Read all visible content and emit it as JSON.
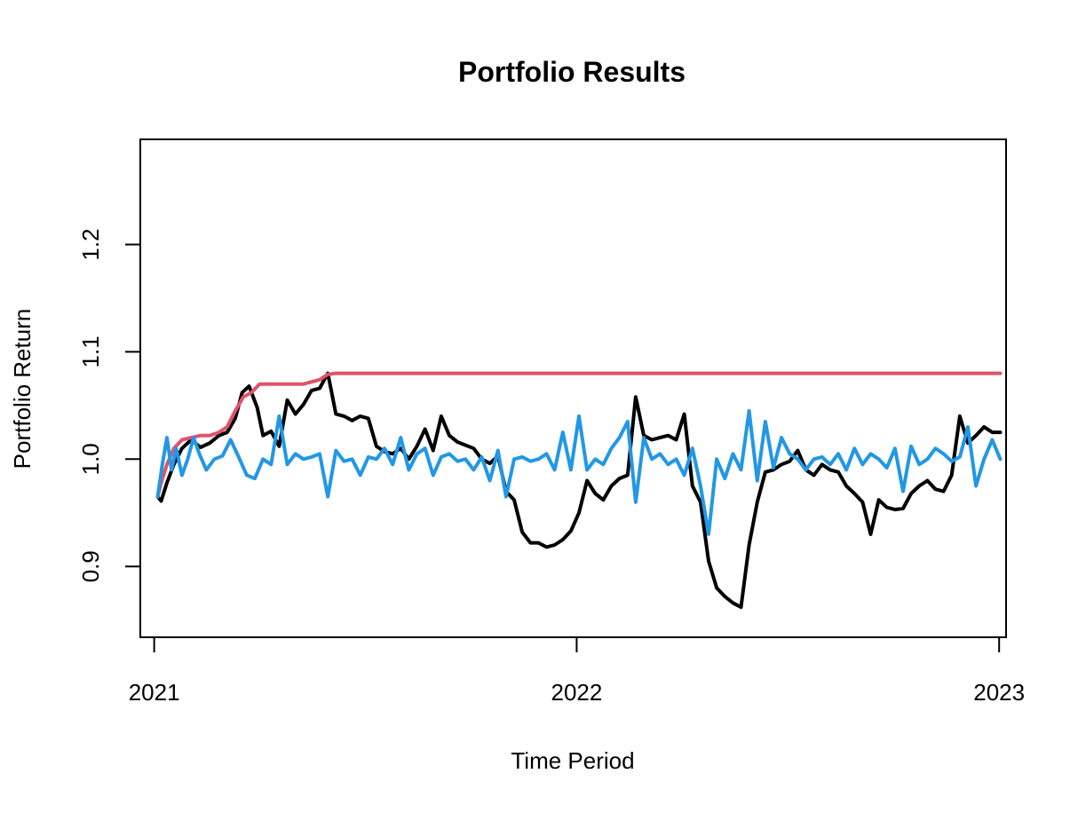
{
  "chart_data": {
    "type": "line",
    "title": "Portfolio Results",
    "xlabel": "Time Period",
    "ylabel": "Portfolio Return",
    "xlim": [
      "2020-12-20",
      "2023-01-07"
    ],
    "ylim": [
      0.834,
      1.298
    ],
    "x_ticks": [
      {
        "date": "2021-01-01",
        "label": "2021"
      },
      {
        "date": "2022-01-01",
        "label": "2022"
      },
      {
        "date": "2023-01-01",
        "label": "2023"
      }
    ],
    "y_ticks": [
      {
        "value": 0.9,
        "label": "0.9"
      },
      {
        "value": 1.0,
        "label": "1.0"
      },
      {
        "value": 1.1,
        "label": "1.1"
      },
      {
        "value": 1.2,
        "label": "1.2"
      }
    ],
    "grid": false,
    "legend": "none",
    "series": [
      {
        "color": "#000000",
        "x": [
          "2021-01-04",
          "2021-01-07",
          "2021-01-12",
          "2021-01-18",
          "2021-01-25",
          "2021-02-02",
          "2021-02-10",
          "2021-02-18",
          "2021-02-26",
          "2021-03-05",
          "2021-03-12",
          "2021-03-18",
          "2021-03-24",
          "2021-03-31",
          "2021-04-05",
          "2021-04-12",
          "2021-04-19",
          "2021-04-26",
          "2021-05-03",
          "2021-05-10",
          "2021-05-17",
          "2021-05-24",
          "2021-05-31",
          "2021-06-07",
          "2021-06-14",
          "2021-06-21",
          "2021-06-28",
          "2021-07-05",
          "2021-07-12",
          "2021-07-19",
          "2021-07-26",
          "2021-08-02",
          "2021-08-09",
          "2021-08-16",
          "2021-08-23",
          "2021-08-30",
          "2021-09-06",
          "2021-09-13",
          "2021-09-20",
          "2021-09-27",
          "2021-10-04",
          "2021-10-11",
          "2021-10-18",
          "2021-10-25",
          "2021-11-01",
          "2021-11-08",
          "2021-11-15",
          "2021-11-22",
          "2021-11-29",
          "2021-12-06",
          "2021-12-13",
          "2021-12-20",
          "2021-12-27",
          "2022-01-03",
          "2022-01-10",
          "2022-01-17",
          "2022-01-24",
          "2022-01-31",
          "2022-02-07",
          "2022-02-14",
          "2022-02-21",
          "2022-02-28",
          "2022-03-07",
          "2022-03-14",
          "2022-03-21",
          "2022-03-28",
          "2022-04-04",
          "2022-04-11",
          "2022-04-18",
          "2022-04-25",
          "2022-05-02",
          "2022-05-09",
          "2022-05-16",
          "2022-05-23",
          "2022-05-30",
          "2022-06-06",
          "2022-06-13",
          "2022-06-20",
          "2022-06-27",
          "2022-07-04",
          "2022-07-11",
          "2022-07-18",
          "2022-07-25",
          "2022-08-01",
          "2022-08-08",
          "2022-08-15",
          "2022-08-22",
          "2022-08-29",
          "2022-09-05",
          "2022-09-12",
          "2022-09-19",
          "2022-09-26",
          "2022-10-03",
          "2022-10-10",
          "2022-10-17",
          "2022-10-24",
          "2022-10-31",
          "2022-11-07",
          "2022-11-14",
          "2022-11-21",
          "2022-11-28",
          "2022-12-05",
          "2022-12-12",
          "2022-12-19",
          "2022-12-26",
          "2023-01-02"
        ],
        "values": [
          0.965,
          0.961,
          0.978,
          0.995,
          1.01,
          1.018,
          1.011,
          1.015,
          1.022,
          1.025,
          1.038,
          1.062,
          1.068,
          1.048,
          1.022,
          1.026,
          1.012,
          1.055,
          1.042,
          1.051,
          1.064,
          1.066,
          1.08,
          1.042,
          1.04,
          1.036,
          1.04,
          1.038,
          1.012,
          1.007,
          1.005,
          1.01,
          1.0,
          1.012,
          1.028,
          1.008,
          1.04,
          1.022,
          1.016,
          1.013,
          1.01,
          1.0,
          0.996,
          1.003,
          0.97,
          0.962,
          0.932,
          0.922,
          0.922,
          0.918,
          0.92,
          0.925,
          0.933,
          0.95,
          0.98,
          0.968,
          0.962,
          0.975,
          0.982,
          0.985,
          1.058,
          1.022,
          1.018,
          1.02,
          1.022,
          1.018,
          1.042,
          0.975,
          0.96,
          0.905,
          0.88,
          0.872,
          0.866,
          0.862,
          0.92,
          0.96,
          0.988,
          0.99,
          0.995,
          0.998,
          1.008,
          0.99,
          0.985,
          0.995,
          0.99,
          0.988,
          0.975,
          0.968,
          0.96,
          0.93,
          0.962,
          0.955,
          0.953,
          0.954,
          0.968,
          0.975,
          0.98,
          0.972,
          0.97,
          0.985,
          1.04,
          1.015,
          1.022,
          1.03,
          1.025,
          1.025
        ]
      },
      {
        "color": "#DF536B",
        "x": [
          "2021-01-04",
          "2021-01-07",
          "2021-01-12",
          "2021-01-18",
          "2021-01-25",
          "2021-02-02",
          "2021-02-10",
          "2021-02-18",
          "2021-02-26",
          "2021-03-05",
          "2021-03-12",
          "2021-03-19",
          "2021-03-26",
          "2021-04-02",
          "2021-04-20",
          "2021-05-10",
          "2021-05-24",
          "2021-05-31",
          "2021-06-07",
          "2021-09-01",
          "2022-01-01",
          "2022-06-01",
          "2022-10-01",
          "2023-01-02"
        ],
        "values": [
          0.965,
          0.978,
          0.995,
          1.01,
          1.018,
          1.02,
          1.022,
          1.022,
          1.025,
          1.03,
          1.045,
          1.058,
          1.062,
          1.07,
          1.07,
          1.07,
          1.074,
          1.079,
          1.08,
          1.08,
          1.08,
          1.08,
          1.08,
          1.08
        ]
      },
      {
        "color": "#2297E6",
        "x": [
          "2021-01-04",
          "2021-01-08",
          "2021-01-12",
          "2021-01-16",
          "2021-01-20",
          "2021-01-25",
          "2021-01-30",
          "2021-02-04",
          "2021-02-09",
          "2021-02-15",
          "2021-02-22",
          "2021-03-01",
          "2021-03-08",
          "2021-03-15",
          "2021-03-22",
          "2021-03-29",
          "2021-04-05",
          "2021-04-12",
          "2021-04-19",
          "2021-04-26",
          "2021-05-03",
          "2021-05-10",
          "2021-05-17",
          "2021-05-24",
          "2021-05-31",
          "2021-06-07",
          "2021-06-14",
          "2021-06-21",
          "2021-06-28",
          "2021-07-05",
          "2021-07-12",
          "2021-07-19",
          "2021-07-26",
          "2021-08-02",
          "2021-08-09",
          "2021-08-16",
          "2021-08-23",
          "2021-08-30",
          "2021-09-06",
          "2021-09-13",
          "2021-09-20",
          "2021-09-27",
          "2021-10-04",
          "2021-10-11",
          "2021-10-18",
          "2021-10-25",
          "2021-11-01",
          "2021-11-08",
          "2021-11-15",
          "2021-11-22",
          "2021-11-29",
          "2021-12-06",
          "2021-12-13",
          "2021-12-20",
          "2021-12-27",
          "2022-01-03",
          "2022-01-10",
          "2022-01-17",
          "2022-01-24",
          "2022-01-31",
          "2022-02-07",
          "2022-02-14",
          "2022-02-21",
          "2022-02-28",
          "2022-03-07",
          "2022-03-14",
          "2022-03-21",
          "2022-03-28",
          "2022-04-04",
          "2022-04-11",
          "2022-04-18",
          "2022-04-25",
          "2022-05-02",
          "2022-05-09",
          "2022-05-16",
          "2022-05-23",
          "2022-05-30",
          "2022-06-06",
          "2022-06-13",
          "2022-06-20",
          "2022-06-27",
          "2022-07-04",
          "2022-07-11",
          "2022-07-18",
          "2022-07-25",
          "2022-08-01",
          "2022-08-08",
          "2022-08-15",
          "2022-08-22",
          "2022-08-29",
          "2022-09-05",
          "2022-09-12",
          "2022-09-19",
          "2022-09-26",
          "2022-10-03",
          "2022-10-10",
          "2022-10-17",
          "2022-10-24",
          "2022-10-31",
          "2022-11-07",
          "2022-11-14",
          "2022-11-21",
          "2022-11-28",
          "2022-12-05",
          "2022-12-12",
          "2022-12-19",
          "2022-12-26",
          "2023-01-02"
        ],
        "values": [
          0.965,
          0.995,
          1.02,
          0.99,
          1.01,
          0.985,
          1.0,
          1.02,
          1.005,
          0.99,
          1.0,
          1.003,
          1.018,
          1.002,
          0.985,
          0.982,
          1.0,
          0.995,
          1.04,
          0.995,
          1.005,
          1.0,
          1.002,
          1.005,
          0.965,
          1.008,
          0.998,
          1.0,
          0.985,
          1.002,
          1.0,
          1.01,
          0.995,
          1.02,
          0.99,
          1.005,
          1.01,
          0.985,
          1.002,
          1.005,
          0.998,
          1.0,
          0.99,
          1.002,
          0.98,
          1.008,
          0.965,
          1.0,
          1.002,
          0.998,
          1.0,
          1.005,
          0.99,
          1.025,
          0.99,
          1.04,
          0.99,
          1.0,
          0.995,
          1.01,
          1.02,
          1.035,
          0.96,
          1.02,
          1.0,
          1.005,
          0.995,
          1.0,
          0.985,
          1.01,
          0.975,
          0.93,
          1.0,
          0.982,
          1.005,
          0.99,
          1.045,
          0.98,
          1.035,
          0.992,
          1.02,
          1.005,
          1.0,
          0.99,
          1.0,
          1.002,
          0.995,
          1.005,
          0.99,
          1.01,
          0.995,
          1.005,
          1.0,
          0.992,
          1.01,
          0.97,
          1.012,
          0.995,
          1.0,
          1.01,
          1.005,
          0.998,
          1.002,
          1.03,
          0.975,
          1.0,
          1.018,
          1.0
        ]
      }
    ]
  }
}
